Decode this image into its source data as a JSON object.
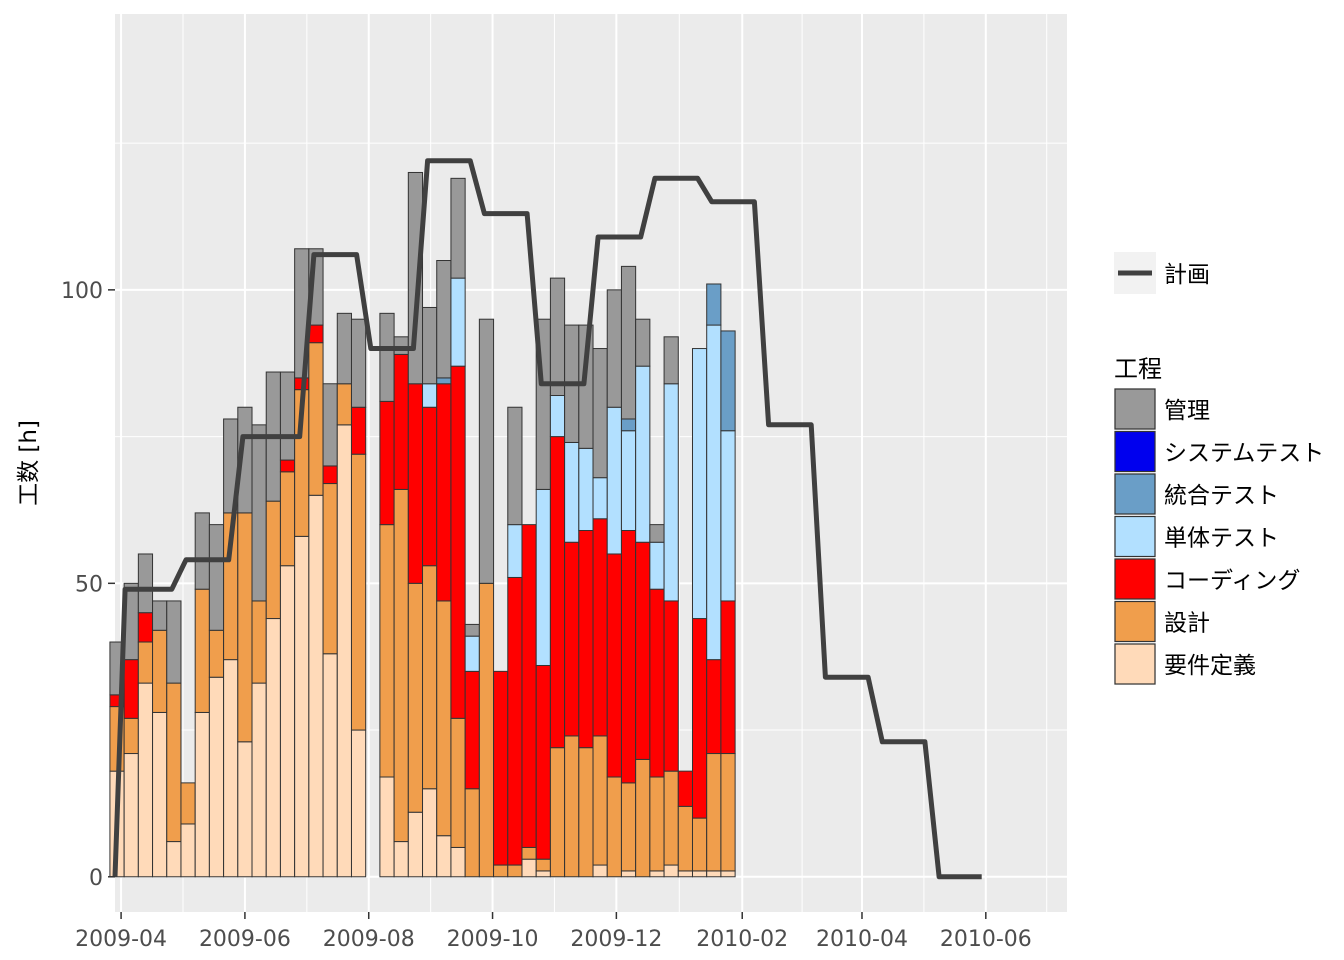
{
  "chart_data": {
    "type": "bar",
    "stacked": true,
    "title": "",
    "xlabel": "",
    "ylabel": "工数 [h]",
    "x_start": "2009-03-29",
    "x_end": "2010-07-11",
    "ylim": [
      -6,
      147
    ],
    "yticks": [
      0,
      50,
      100
    ],
    "xticks": [
      "2009-04-01",
      "2009-06-01",
      "2009-08-01",
      "2009-10-01",
      "2009-12-01",
      "2010-02-01",
      "2010-04-01",
      "2010-06-01"
    ],
    "xtick_labels": [
      "2009-04",
      "2009-06",
      "2009-08",
      "2009-10",
      "2009-12",
      "2010-02",
      "2010-04",
      "2010-06"
    ],
    "grid": true,
    "panel_bg": "#ebebeb",
    "legend_position": "right",
    "categories": [
      "2009-03-30",
      "2009-04-06",
      "2009-04-13",
      "2009-04-20",
      "2009-04-27",
      "2009-05-04",
      "2009-05-11",
      "2009-05-18",
      "2009-05-25",
      "2009-06-01",
      "2009-06-08",
      "2009-06-15",
      "2009-06-22",
      "2009-06-29",
      "2009-07-06",
      "2009-07-13",
      "2009-07-20",
      "2009-07-27",
      "2009-08-03",
      "2009-08-10",
      "2009-08-17",
      "2009-08-24",
      "2009-08-31",
      "2009-09-07",
      "2009-09-14",
      "2009-09-21",
      "2009-09-28",
      "2009-10-05",
      "2009-10-12",
      "2009-10-19",
      "2009-10-26",
      "2009-11-02",
      "2009-11-09",
      "2009-11-16",
      "2009-11-23",
      "2009-11-30",
      "2009-12-07",
      "2009-12-14",
      "2009-12-21",
      "2009-12-28",
      "2010-01-04",
      "2010-01-11",
      "2010-01-18",
      "2010-01-25",
      "2010-02-01"
    ],
    "series": [
      {
        "name": "要件定義",
        "color": "#ffdab9",
        "values": [
          18,
          21,
          33,
          28,
          6,
          9,
          28,
          34,
          37,
          23,
          33,
          44,
          53,
          58,
          65,
          38,
          77,
          25,
          0,
          17,
          6,
          11,
          15,
          7,
          5,
          0,
          0,
          0,
          0,
          3,
          1,
          0,
          0,
          0,
          2,
          0,
          1,
          0,
          1,
          2,
          1,
          1,
          1,
          1,
          0
        ]
      },
      {
        "name": "設計",
        "color": "#f09e4c",
        "values": [
          11,
          6,
          7,
          14,
          27,
          7,
          21,
          8,
          25,
          39,
          14,
          20,
          16,
          25,
          26,
          29,
          7,
          47,
          0,
          43,
          60,
          39,
          38,
          40,
          22,
          15,
          50,
          2,
          2,
          2,
          2,
          22,
          24,
          22,
          22,
          17,
          15,
          20,
          16,
          16,
          11,
          9,
          20,
          20,
          0
        ]
      },
      {
        "name": "コーディング",
        "color": "#ff0000",
        "values": [
          2,
          10,
          5,
          0,
          0,
          0,
          0,
          0,
          0,
          0,
          0,
          0,
          2,
          2,
          3,
          3,
          0,
          8,
          0,
          21,
          23,
          34,
          27,
          37,
          60,
          20,
          0,
          33,
          49,
          55,
          33,
          53,
          33,
          37,
          37,
          38,
          43,
          37,
          32,
          29,
          6,
          34,
          16,
          26,
          0
        ]
      },
      {
        "name": "単体テスト",
        "color": "#b2e0ff",
        "values": [
          0,
          0,
          0,
          0,
          0,
          0,
          0,
          0,
          0,
          0,
          0,
          0,
          0,
          0,
          0,
          0,
          0,
          0,
          0,
          0,
          0,
          0,
          4,
          0,
          15,
          6,
          0,
          0,
          9,
          0,
          30,
          7,
          17,
          14,
          7,
          25,
          17,
          30,
          8,
          37,
          0,
          46,
          57,
          29,
          0
        ]
      },
      {
        "name": "統合テスト",
        "color": "#6a9ec7",
        "values": [
          0,
          0,
          0,
          0,
          0,
          0,
          0,
          0,
          0,
          0,
          0,
          0,
          0,
          0,
          0,
          0,
          0,
          0,
          0,
          0,
          0,
          0,
          0,
          1,
          0,
          0,
          0,
          0,
          0,
          0,
          0,
          0,
          0,
          0,
          0,
          0,
          2,
          0,
          0,
          0,
          0,
          0,
          7,
          17,
          0
        ]
      },
      {
        "name": "システムテスト",
        "color": "#0000ee",
        "values": [
          0,
          0,
          0,
          0,
          0,
          0,
          0,
          0,
          0,
          0,
          0,
          0,
          0,
          0,
          0,
          0,
          0,
          0,
          0,
          0,
          0,
          0,
          0,
          0,
          0,
          0,
          0,
          0,
          0,
          0,
          0,
          0,
          0,
          0,
          0,
          0,
          0,
          0,
          0,
          0,
          0,
          0,
          0,
          0,
          0
        ]
      },
      {
        "name": "管理",
        "color": "#999999",
        "values": [
          9,
          13,
          10,
          5,
          14,
          0,
          13,
          18,
          16,
          18,
          30,
          22,
          15,
          22,
          13,
          14,
          12,
          15,
          0,
          15,
          3,
          36,
          13,
          20,
          17,
          2,
          45,
          0,
          20,
          0,
          29,
          20,
          20,
          21,
          22,
          20,
          26,
          8,
          3,
          8,
          0,
          0,
          0,
          0,
          0
        ]
      }
    ],
    "plan": {
      "name": "計画",
      "color": "#404040",
      "points": [
        [
          "2009-03-29",
          0
        ],
        [
          "2009-04-03",
          49
        ],
        [
          "2009-04-26",
          49
        ],
        [
          "2009-05-03",
          54
        ],
        [
          "2009-05-24",
          54
        ],
        [
          "2009-05-31",
          75
        ],
        [
          "2009-06-28",
          75
        ],
        [
          "2009-07-05",
          106
        ],
        [
          "2009-07-26",
          106
        ],
        [
          "2009-08-02",
          90
        ],
        [
          "2009-08-23",
          90
        ],
        [
          "2009-08-30",
          122
        ],
        [
          "2009-09-20",
          122
        ],
        [
          "2009-09-27",
          113
        ],
        [
          "2009-10-18",
          113
        ],
        [
          "2009-10-25",
          84
        ],
        [
          "2009-11-15",
          84
        ],
        [
          "2009-11-22",
          109
        ],
        [
          "2009-12-13",
          109
        ],
        [
          "2009-12-20",
          119
        ],
        [
          "2010-01-10",
          119
        ],
        [
          "2010-01-17",
          115
        ],
        [
          "2010-02-07",
          115
        ],
        [
          "2010-02-14",
          77
        ],
        [
          "2010-03-07",
          77
        ],
        [
          "2010-03-14",
          34
        ],
        [
          "2010-04-04",
          34
        ],
        [
          "2010-04-11",
          23
        ],
        [
          "2010-05-02",
          23
        ],
        [
          "2010-05-09",
          0
        ],
        [
          "2010-05-30",
          0
        ]
      ]
    },
    "legend": {
      "line_entries": [
        "計画"
      ],
      "fill_title": "工程",
      "fill_entries": [
        {
          "label": "管理",
          "color": "#999999"
        },
        {
          "label": "システムテスト",
          "color": "#0000ee"
        },
        {
          "label": "統合テスト",
          "color": "#6a9ec7"
        },
        {
          "label": "単体テスト",
          "color": "#b2e0ff"
        },
        {
          "label": "コーディング",
          "color": "#ff0000"
        },
        {
          "label": "設計",
          "color": "#f09e4c"
        },
        {
          "label": "要件定義",
          "color": "#ffdab9"
        }
      ]
    }
  }
}
